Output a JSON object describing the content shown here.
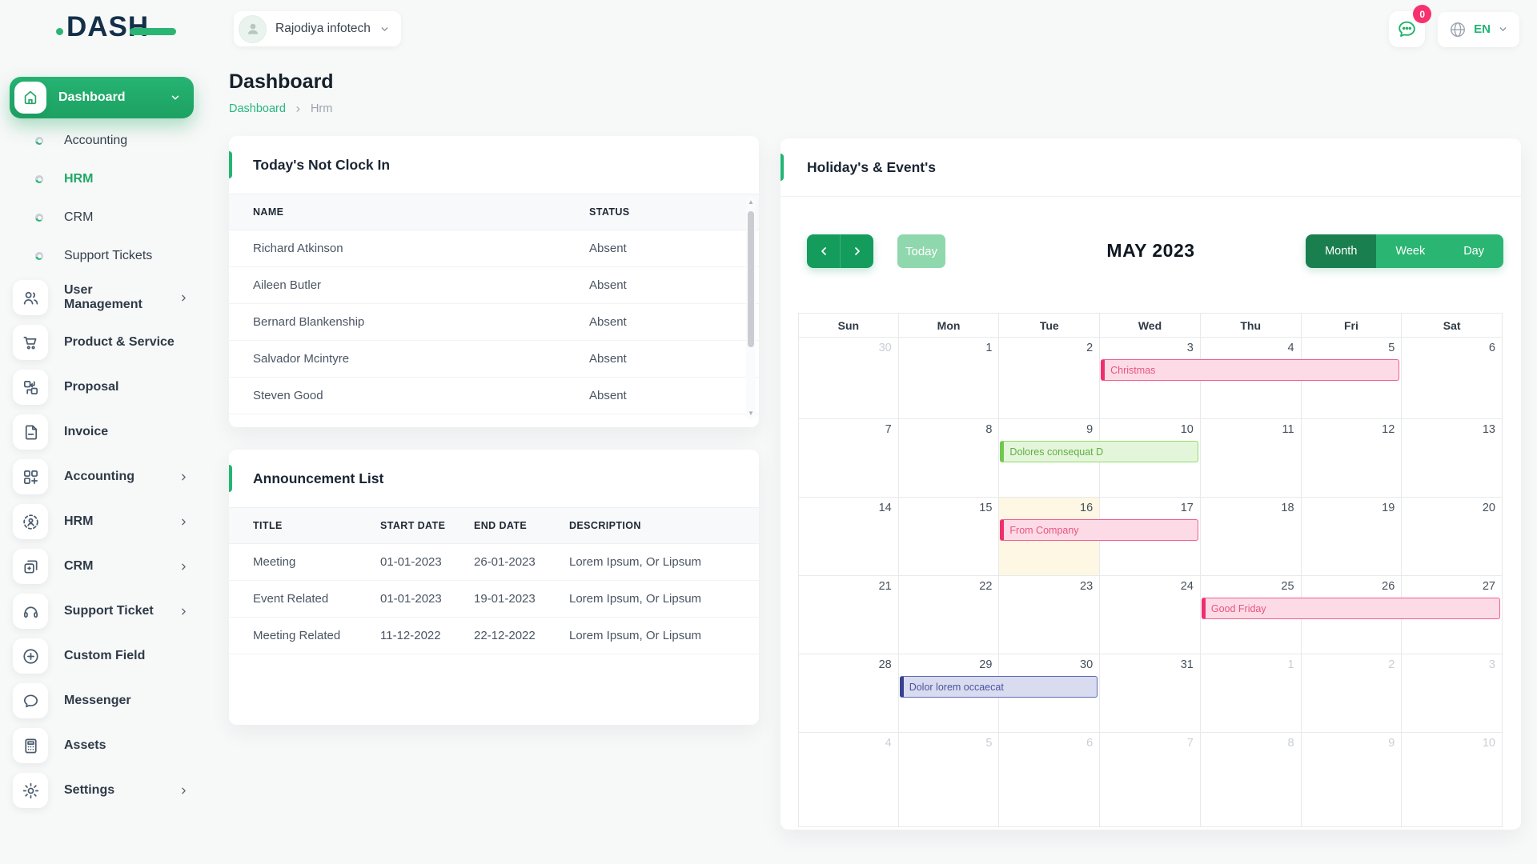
{
  "topbar": {
    "logo_text": "DASH",
    "company_selector": {
      "label": "Rajodiya infotech"
    },
    "chat_badge": "0",
    "language": "EN"
  },
  "sidebar": {
    "items": [
      {
        "kind": "parent-active",
        "icon": "home-icon",
        "label": "Dashboard",
        "chevron": "down"
      },
      {
        "kind": "sub",
        "label": "Accounting",
        "active": false
      },
      {
        "kind": "sub",
        "label": "HRM",
        "active": true
      },
      {
        "kind": "sub",
        "label": "CRM",
        "active": false
      },
      {
        "kind": "sub",
        "label": "Support Tickets",
        "active": false
      },
      {
        "kind": "item",
        "icon": "users-icon",
        "label": "User Management",
        "chevron": true
      },
      {
        "kind": "item",
        "icon": "cart-icon",
        "label": "Product & Service",
        "chevron": false
      },
      {
        "kind": "item",
        "icon": "proposal-icon",
        "label": "Proposal",
        "chevron": false
      },
      {
        "kind": "item",
        "icon": "invoice-icon",
        "label": "Invoice",
        "chevron": false
      },
      {
        "kind": "item",
        "icon": "accounting-grid-icon",
        "label": "Accounting",
        "chevron": true
      },
      {
        "kind": "item",
        "icon": "hrm-person-icon",
        "label": "HRM",
        "chevron": true
      },
      {
        "kind": "item",
        "icon": "crm-cards-icon",
        "label": "CRM",
        "chevron": true
      },
      {
        "kind": "item",
        "icon": "headset-icon",
        "label": "Support Ticket",
        "chevron": true
      },
      {
        "kind": "item",
        "icon": "plus-circle-icon",
        "label": "Custom Field",
        "chevron": false
      },
      {
        "kind": "item",
        "icon": "messenger-icon",
        "label": "Messenger",
        "chevron": false
      },
      {
        "kind": "item",
        "icon": "calculator-icon",
        "label": "Assets",
        "chevron": false
      },
      {
        "kind": "item",
        "icon": "gear-icon",
        "label": "Settings",
        "chevron": true
      }
    ]
  },
  "page": {
    "title": "Dashboard",
    "breadcrumb_link": "Dashboard",
    "breadcrumb_current": "Hrm"
  },
  "clockin_card": {
    "title": "Today's Not Clock In",
    "columns": [
      "NAME",
      "STATUS"
    ],
    "rows": [
      [
        "Richard Atkinson",
        "Absent"
      ],
      [
        "Aileen Butler",
        "Absent"
      ],
      [
        "Bernard Blankenship",
        "Absent"
      ],
      [
        "Salvador Mcintyre",
        "Absent"
      ],
      [
        "Steven Good",
        "Absent"
      ]
    ]
  },
  "announcement_card": {
    "title": "Announcement List",
    "columns": [
      "TITLE",
      "START DATE",
      "END DATE",
      "DESCRIPTION"
    ],
    "rows": [
      [
        "Meeting",
        "01-01-2023",
        "26-01-2023",
        "Lorem Ipsum, Or Lipsum"
      ],
      [
        "Event Related",
        "01-01-2023",
        "19-01-2023",
        "Lorem Ipsum, Or Lipsum"
      ],
      [
        "Meeting Related",
        "11-12-2022",
        "22-12-2022",
        "Lorem Ipsum, Or Lipsum"
      ]
    ]
  },
  "calendar": {
    "title": "Holiday's & Event's",
    "toolbar": {
      "today_label": "Today",
      "month_title": "MAY 2023",
      "views": [
        "Month",
        "Week",
        "Day"
      ],
      "active_view": "Month"
    },
    "day_headers": [
      "Sun",
      "Mon",
      "Tue",
      "Wed",
      "Thu",
      "Fri",
      "Sat"
    ],
    "weeks": [
      [
        {
          "n": "30",
          "muted": true
        },
        {
          "n": "1"
        },
        {
          "n": "2"
        },
        {
          "n": "3"
        },
        {
          "n": "4"
        },
        {
          "n": "5"
        },
        {
          "n": "6"
        }
      ],
      [
        {
          "n": "7"
        },
        {
          "n": "8"
        },
        {
          "n": "9"
        },
        {
          "n": "10"
        },
        {
          "n": "11"
        },
        {
          "n": "12"
        },
        {
          "n": "13"
        }
      ],
      [
        {
          "n": "14"
        },
        {
          "n": "15"
        },
        {
          "n": "16"
        },
        {
          "n": "17"
        },
        {
          "n": "18"
        },
        {
          "n": "19"
        },
        {
          "n": "20"
        }
      ],
      [
        {
          "n": "21"
        },
        {
          "n": "22"
        },
        {
          "n": "23"
        },
        {
          "n": "24"
        },
        {
          "n": "25"
        },
        {
          "n": "26"
        },
        {
          "n": "27"
        }
      ],
      [
        {
          "n": "28"
        },
        {
          "n": "29"
        },
        {
          "n": "30"
        },
        {
          "n": "31"
        },
        {
          "n": "1",
          "muted": true
        },
        {
          "n": "2",
          "muted": true
        },
        {
          "n": "3",
          "muted": true
        }
      ],
      [
        {
          "n": "4",
          "muted": true
        },
        {
          "n": "5",
          "muted": true
        },
        {
          "n": "6",
          "muted": true
        },
        {
          "n": "7",
          "muted": true
        },
        {
          "n": "8",
          "muted": true
        },
        {
          "n": "9",
          "muted": true
        },
        {
          "n": "10",
          "muted": true
        }
      ]
    ],
    "today_cell": {
      "week": 2,
      "col": 2
    },
    "events": [
      {
        "title": "Christmas",
        "week": 0,
        "col_start": 3,
        "span": 3,
        "color": "pink"
      },
      {
        "title": "Dolores consequat D",
        "week": 1,
        "col_start": 2,
        "span": 2,
        "color": "green"
      },
      {
        "title": "From Company",
        "week": 2,
        "col_start": 2,
        "span": 2,
        "color": "pink"
      },
      {
        "title": "Good Friday",
        "week": 3,
        "col_start": 4,
        "span": 3,
        "color": "pink"
      },
      {
        "title": "Dolor lorem occaecat",
        "week": 4,
        "col_start": 1,
        "span": 2,
        "color": "purple"
      }
    ]
  },
  "colors": {
    "accent_green": "#22b573",
    "active_view_green": "#1a7f4f",
    "view_green": "#2bb573",
    "today_button_green": "#8fd7ad",
    "today_cell_bg": "#fdf7e3",
    "badge_pink": "#f7316f",
    "event_pink": {
      "bg": "#fcdbe6",
      "border": "#f0608f",
      "bar": "#ee2e6e",
      "text": "#e9557f"
    },
    "event_green": {
      "bg": "#e4f6da",
      "border": "#90dc6d",
      "bar": "#6fc94e",
      "text": "#61ad46"
    },
    "event_purple": {
      "bg": "#d9dcef",
      "border": "#5d68b8",
      "bar": "#37418f",
      "text": "#4a55a2"
    }
  }
}
